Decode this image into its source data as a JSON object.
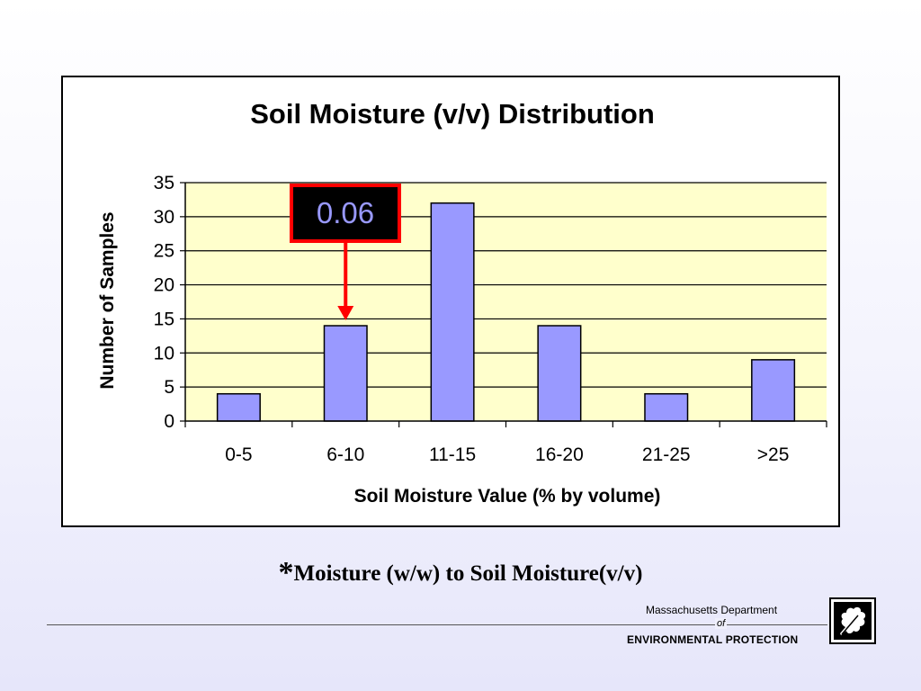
{
  "chart_data": {
    "type": "bar",
    "title": "Soil Moisture (v/v) Distribution",
    "xlabel": "Soil Moisture Value (% by volume)",
    "ylabel": "Number of Samples",
    "categories": [
      "0-5",
      "6-10",
      "11-15",
      "16-20",
      "21-25",
      ">25"
    ],
    "values": [
      4,
      14,
      32,
      14,
      4,
      9
    ],
    "ylim": [
      0,
      35
    ],
    "yticks": [
      0,
      5,
      10,
      15,
      20,
      25,
      30,
      35
    ],
    "grid": true,
    "legend": "none",
    "colors": {
      "bar": "#9999ff",
      "plot_background": "#ffffcc",
      "callout_border": "#ff0000",
      "callout_background": "#000000",
      "callout_text": "#9999ff"
    },
    "annotation": {
      "text": "0.06",
      "points_to": "6-10"
    }
  },
  "footnote": {
    "star": "*",
    "text": "Moisture (w/w) to Soil Moisture(v/v)"
  },
  "footer": {
    "dept": "Massachusetts Department",
    "of": "of",
    "env": "ENVIRONMENTAL  PROTECTION",
    "logo_icon": "oak-leaf-icon"
  }
}
